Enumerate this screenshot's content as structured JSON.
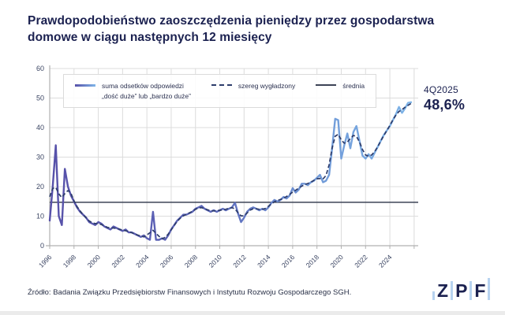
{
  "title": "Prawdopodobieństwo zaoszczędzenia pieniędzy przez gospodarstwa domowe w ciągu następnych 12 miesięcy",
  "annotation": {
    "period": "4Q2025",
    "value": "48,6%"
  },
  "legend": {
    "items": [
      {
        "label_line1": "suma odsetków odpowiedzi",
        "label_line2": "„dość duże” lub „bardzo duże”",
        "swatch": "gradient-line"
      },
      {
        "label": "szereg wygładzony",
        "swatch": "dashed-line"
      },
      {
        "label": "średnia",
        "swatch": "solid-line"
      }
    ]
  },
  "footer": {
    "source": "Źródło: Badania Związku Przedsiębiorstw Finansowych i Instytutu Rozwoju Gospodarczego SGH.",
    "logo_letters": [
      "Z",
      "P",
      "F"
    ]
  },
  "colors": {
    "navy": "#1b2150",
    "line_gradient": [
      "#5751a9",
      "#5d68ba",
      "#6f97d6",
      "#7fb5e8"
    ],
    "smoothed_line": "#2d3c6b",
    "average_line": "#3c4356",
    "grid": "#dcdcdc",
    "axis": "#b0b0b0",
    "tick_text": "#3b4563"
  },
  "chart_data": {
    "type": "line",
    "title": "",
    "xlabel": "",
    "ylabel": "",
    "x_start_year": 1996,
    "frequency": "quarterly",
    "x_tick_labels": [
      "1996",
      "1998",
      "2000",
      "2002",
      "2004",
      "2006",
      "2008",
      "2010",
      "2012",
      "2014",
      "2016",
      "2018",
      "2020",
      "2022",
      "2024"
    ],
    "y_ticks": [
      0,
      10,
      20,
      30,
      40,
      50,
      60
    ],
    "ylim": [
      0,
      60
    ],
    "grid": true,
    "legend_position": "top-left-inside",
    "series": [
      {
        "name": "suma odsetków odpowiedzi „dość duże” lub „bardzo duże”",
        "style": "solid-gradient",
        "values": [
          8.5,
          20,
          34,
          10,
          7,
          26,
          20,
          17,
          15,
          13,
          11.5,
          10.5,
          9.5,
          8,
          7.5,
          7,
          8,
          7.5,
          6.5,
          6,
          5.5,
          6.5,
          6,
          5.5,
          5,
          5.5,
          4.5,
          4.5,
          4,
          3.5,
          3,
          3.5,
          2.5,
          2,
          11.5,
          2,
          2,
          2.5,
          2,
          3.5,
          5.5,
          7,
          8.5,
          9.5,
          10.5,
          10.5,
          11,
          11.5,
          12.5,
          13,
          13.5,
          12.5,
          12,
          11.5,
          12,
          11.5,
          12,
          12.5,
          12,
          12.5,
          13,
          14.5,
          11,
          8,
          9.5,
          11.5,
          12.5,
          13,
          12.5,
          12,
          12.5,
          12,
          13,
          14.5,
          15.5,
          15,
          15.5,
          16.5,
          16,
          17,
          19.5,
          18,
          19,
          21,
          21,
          20.5,
          21.5,
          22,
          23,
          24,
          21.5,
          22,
          24,
          33,
          43,
          42.5,
          29.5,
          34,
          38,
          33,
          38.5,
          40.5,
          35.5,
          30.5,
          29.5,
          31,
          29.5,
          31.5,
          33.5,
          35.5,
          37.5,
          39,
          40.5,
          42.5,
          44.5,
          47,
          45,
          46.5,
          48.4,
          48.6
        ]
      },
      {
        "name": "szereg wygładzony",
        "style": "dashed",
        "derived": "moving-average-of-raw-series"
      },
      {
        "name": "średnia",
        "style": "horizontal-line",
        "value": 14.7
      }
    ],
    "last_point": {
      "period": "4Q2025",
      "value": 48.6
    }
  }
}
